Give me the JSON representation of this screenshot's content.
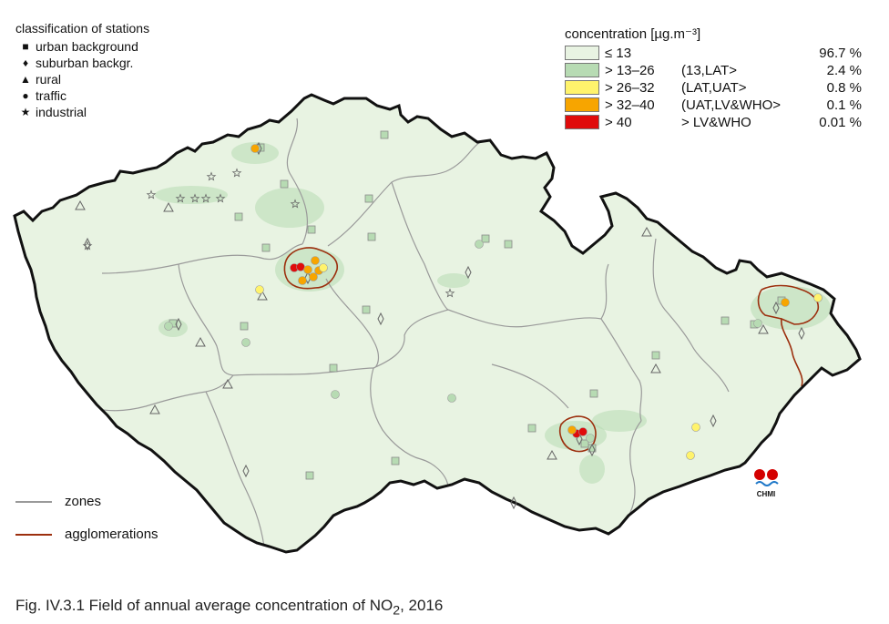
{
  "colors": {
    "le13": "#e8f3e2",
    "13_26": "#b7dbb3",
    "26_32": "#fff36c",
    "32_40": "#f7a500",
    "gt40": "#e00b0b",
    "zones": "#9a9a9a",
    "agglomerations": "#9c2f0e"
  },
  "classification_legend": {
    "title": "classification of stations",
    "items": [
      {
        "symbol": "square",
        "glyph": "■",
        "label": "urban background"
      },
      {
        "symbol": "diamond",
        "glyph": "♦",
        "label": "suburban backgr."
      },
      {
        "symbol": "triangle",
        "glyph": "▲",
        "label": "rural"
      },
      {
        "symbol": "circle",
        "glyph": "●",
        "label": "traffic"
      },
      {
        "symbol": "star",
        "glyph": "★",
        "label": "industrial"
      }
    ]
  },
  "concentration_legend": {
    "title": "concentration [µg.m⁻³]",
    "items": [
      {
        "range": "≤ 13",
        "class": "",
        "percent": "96.7 %",
        "color_key": "le13"
      },
      {
        "range": "> 13–26",
        "class": "(13,LAT>",
        "percent": "2.4 %",
        "color_key": "13_26"
      },
      {
        "range": "> 26–32",
        "class": "(LAT,UAT>",
        "percent": "0.8 %",
        "color_key": "26_32"
      },
      {
        "range": "> 32–40",
        "class": "(UAT,LV&WHO>",
        "percent": "0.1 %",
        "color_key": "32_40"
      },
      {
        "range": "> 40",
        "class": " > LV&WHO",
        "percent": "0.01 %",
        "color_key": "gt40"
      }
    ]
  },
  "line_legend": {
    "zones": "zones",
    "agglomerations": "agglomerations"
  },
  "logo_text": "CHMI",
  "caption": {
    "prefix": "Fig. IV.3.1  Field of annual average concentration of NO",
    "subscript": "2",
    "suffix": ", 2016"
  },
  "stations": {
    "urban_background": [
      [
        422,
        148
      ],
      [
        405,
        218
      ],
      [
        408,
        260
      ],
      [
        342,
        252
      ],
      [
        292,
        272
      ],
      [
        312,
        202
      ],
      [
        262,
        238
      ],
      [
        286,
        162
      ],
      [
        402,
        340
      ],
      [
        533,
        262
      ],
      [
        558,
        268
      ],
      [
        190,
        355
      ],
      [
        366,
        404
      ],
      [
        434,
        506
      ],
      [
        340,
        522
      ],
      [
        268,
        358
      ],
      [
        584,
        470
      ],
      [
        652,
        432
      ],
      [
        720,
        390
      ],
      [
        796,
        352
      ],
      [
        858,
        330
      ],
      [
        828,
        356
      ],
      [
        650,
        492
      ],
      [
        642,
        487
      ]
    ],
    "suburban": [
      [
        284,
        163
      ],
      [
        96,
        268
      ],
      [
        514,
        299
      ],
      [
        338,
        305
      ],
      [
        196,
        356
      ],
      [
        418,
        350
      ],
      [
        270,
        517
      ],
      [
        564,
        552
      ],
      [
        783,
        462
      ],
      [
        852,
        338
      ],
      [
        880,
        366
      ],
      [
        650,
        494
      ],
      [
        636,
        482
      ]
    ],
    "rural": [
      [
        88,
        226
      ],
      [
        185,
        228
      ],
      [
        288,
        325
      ],
      [
        250,
        422
      ],
      [
        220,
        376
      ],
      [
        170,
        450
      ],
      [
        710,
        255
      ],
      [
        720,
        405
      ],
      [
        838,
        362
      ],
      [
        606,
        500
      ]
    ],
    "traffic": [
      {
        "pos": [
          280,
          163
        ],
        "level": "32_40"
      },
      {
        "pos": [
          285,
          318
        ],
        "level": "26_32"
      },
      {
        "pos": [
          323,
          294
        ],
        "level": "gt40"
      },
      {
        "pos": [
          330,
          293
        ],
        "level": "gt40"
      },
      {
        "pos": [
          338,
          296
        ],
        "level": "32_40"
      },
      {
        "pos": [
          346,
          286
        ],
        "level": "32_40"
      },
      {
        "pos": [
          350,
          297
        ],
        "level": "32_40"
      },
      {
        "pos": [
          355,
          294
        ],
        "level": "26_32"
      },
      {
        "pos": [
          344,
          304
        ],
        "level": "32_40"
      },
      {
        "pos": [
          332,
          308
        ],
        "level": "32_40"
      },
      {
        "pos": [
          185,
          358
        ],
        "level": "13_26"
      },
      {
        "pos": [
          270,
          376
        ],
        "level": "13_26"
      },
      {
        "pos": [
          368,
          433
        ],
        "level": "13_26"
      },
      {
        "pos": [
          496,
          437
        ],
        "level": "13_26"
      },
      {
        "pos": [
          526,
          268
        ],
        "level": "13_26"
      },
      {
        "pos": [
          633,
          476
        ],
        "level": "gt40"
      },
      {
        "pos": [
          640,
          474
        ],
        "level": "gt40"
      },
      {
        "pos": [
          628,
          472
        ],
        "level": "32_40"
      },
      {
        "pos": [
          648,
          481
        ],
        "level": "13_26"
      },
      {
        "pos": [
          764,
          469
        ],
        "level": "26_32"
      },
      {
        "pos": [
          758,
          500
        ],
        "level": "26_32"
      },
      {
        "pos": [
          862,
          332
        ],
        "level": "32_40"
      },
      {
        "pos": [
          898,
          327
        ],
        "level": "26_32"
      },
      {
        "pos": [
          832,
          355
        ],
        "level": "13_26"
      }
    ],
    "industrial": [
      [
        166,
        214
      ],
      [
        198,
        218
      ],
      [
        214,
        218
      ],
      [
        226,
        218
      ],
      [
        242,
        218
      ],
      [
        260,
        190
      ],
      [
        324,
        224
      ],
      [
        494,
        322
      ],
      [
        232,
        194
      ],
      [
        96,
        270
      ]
    ]
  }
}
